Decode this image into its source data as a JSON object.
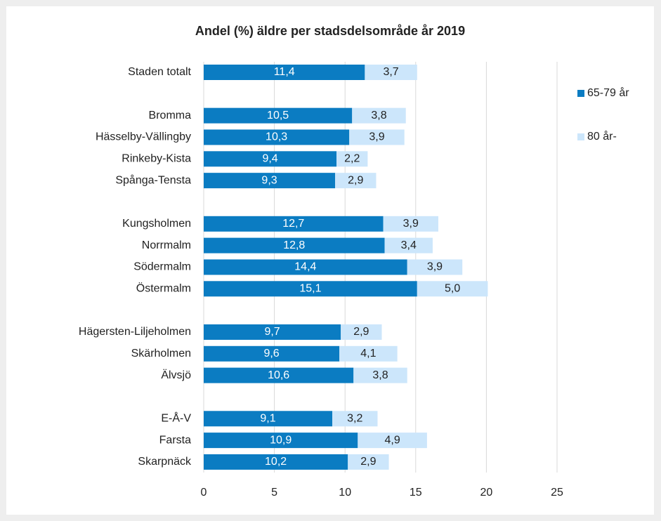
{
  "chart_data": {
    "type": "stacked-barh",
    "title": "Andel (%) äldre per stadsdelsområde år 2019",
    "categories": [
      "Staden totalt",
      null,
      "Bromma",
      "Hässelby-Vällingby",
      "Rinkeby-Kista",
      "Spånga-Tensta",
      null,
      "Kungsholmen",
      "Norrmalm",
      "Södermalm",
      "Östermalm",
      null,
      "Hägersten-Liljeholmen",
      "Skärholmen",
      "Älvsjö",
      null,
      "E-Å-V",
      "Farsta",
      "Skarpnäck"
    ],
    "series": [
      {
        "name": "65-79 år",
        "color": "#0b7cc2",
        "values": [
          11.4,
          null,
          10.5,
          10.3,
          9.4,
          9.3,
          null,
          12.7,
          12.8,
          14.4,
          15.1,
          null,
          9.7,
          9.6,
          10.6,
          null,
          9.1,
          10.9,
          10.2
        ],
        "value_labels": [
          "11,4",
          null,
          "10,5",
          "10,3",
          "9,4",
          "9,3",
          null,
          "12,7",
          "12,8",
          "14,4",
          "15,1",
          null,
          "9,7",
          "9,6",
          "10,6",
          null,
          "9,1",
          "10,9",
          "10,2"
        ]
      },
      {
        "name": "80 år-",
        "color": "#cce6fb",
        "values": [
          3.7,
          null,
          3.8,
          3.9,
          2.2,
          2.9,
          null,
          3.9,
          3.4,
          3.9,
          5.0,
          null,
          2.9,
          4.1,
          3.8,
          null,
          3.2,
          4.9,
          2.9
        ],
        "value_labels": [
          "3,7",
          null,
          "3,8",
          "3,9",
          "2,2",
          "2,9",
          null,
          "3,9",
          "3,4",
          "3,9",
          "5,0",
          null,
          "2,9",
          "4,1",
          "3,8",
          null,
          "3,2",
          "4,9",
          "2,9"
        ]
      }
    ],
    "xlim": [
      0,
      25
    ],
    "xticks": [
      0,
      5,
      10,
      15,
      20,
      25
    ],
    "grid": true,
    "legend": "right"
  }
}
